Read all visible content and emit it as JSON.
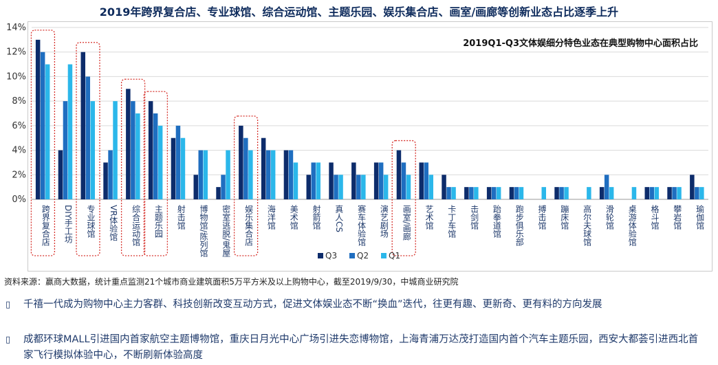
{
  "page_title": "2019年跨界复合店、专业球馆、综合运动馆、主题乐园、娱乐集合店、画室/画廊等创新业态占比逐季上升",
  "source": "资料来源：赢商大数据，统计重点监测21个城市商业建筑面积5万平方米及以上购物中心，截至2019/9/30，中城商业研究院",
  "bullets": [
    {
      "icon": "checkbox-bullet-icon",
      "glyph": "▯",
      "text": "千禧一代成为购物中心主力客群、科技创新改变互动方式，促进文体娱业态不断“换血”迭代，往更有趣、更新奇、更有料的方向发展"
    },
    {
      "icon": "checkbox-bullet-icon",
      "glyph": "▯",
      "text": "成都环球MALL引进国内首家航空主题博物馆，重庆日月光中心广场引进失恋博物馆，上海青浦万达茂打造国内首个汽车主题乐园，西安大都荟引进西北首家飞行模拟体验中心，不断刷新体验高度"
    }
  ],
  "colors": {
    "q3": "#0d2c6b",
    "q2": "#1f6ec0",
    "q1": "#2bb7ea",
    "highlight": "#d6302a",
    "grid": "#d9d9d9"
  },
  "chart_data": {
    "type": "bar",
    "title": "2019Q1-Q3文体娱细分特色业态在典型购物中心面积占比",
    "categories": [
      "跨界复合店",
      "DIY手工坊",
      "专业球馆",
      "VR体验馆",
      "综合运动馆",
      "主题乐园",
      "射击馆",
      "博物馆/陈列馆",
      "密室逃脱/鬼屋",
      "娱乐集合店",
      "海洋馆",
      "美术馆",
      "射箭馆",
      "真人CS",
      "赛车体验馆",
      "演艺剧场",
      "画室/画廊",
      "艺术馆",
      "卡丁车馆",
      "击剑馆",
      "跆拳道馆",
      "跑步俱乐部",
      "搏击馆",
      "蹦床馆",
      "高尔夫球馆",
      "滑轮馆",
      "桌游体验馆",
      "格斗馆",
      "攀岩馆",
      "瑜伽馆"
    ],
    "series": [
      {
        "name": "Q3",
        "values": [
          13,
          4,
          12,
          3,
          9,
          8,
          5,
          2,
          1,
          6,
          5,
          4,
          2,
          3,
          3,
          3,
          4,
          3,
          2,
          1,
          1,
          1,
          0,
          1,
          0,
          1,
          0,
          1,
          1,
          2
        ]
      },
      {
        "name": "Q2",
        "values": [
          12,
          8,
          10,
          4,
          8,
          7,
          6,
          4,
          2,
          5,
          4,
          4,
          3,
          2,
          2,
          3,
          3,
          3,
          1,
          1,
          1,
          1,
          0,
          1,
          0,
          2,
          0,
          1,
          1,
          1
        ]
      },
      {
        "name": "Q1",
        "values": [
          11,
          11,
          8,
          8,
          7,
          6,
          5,
          4,
          4,
          4,
          4,
          3,
          3,
          2,
          2,
          2,
          2,
          2,
          1,
          1,
          1,
          1,
          1,
          1,
          1,
          1,
          1,
          1,
          1,
          1
        ]
      }
    ],
    "highlighted": [
      "跨界复合店",
      "专业球馆",
      "综合运动馆",
      "主题乐园",
      "娱乐集合店",
      "画室/画廊"
    ],
    "y_ticks": [
      "0%",
      "2%",
      "4%",
      "6%",
      "8%",
      "10%",
      "12%",
      "14%"
    ],
    "ylim": [
      0,
      14
    ],
    "legend": [
      "Q3",
      "Q2",
      "Q1"
    ],
    "legend_position": "bottom",
    "xlabel": "",
    "ylabel": ""
  }
}
